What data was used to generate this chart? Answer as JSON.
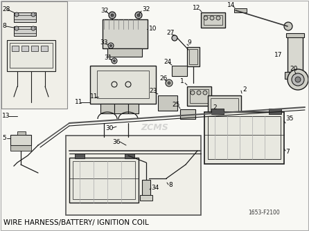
{
  "title": "WIRE HARNESS/BATTERY/ IGNITION COIL",
  "part_code": "1653-F2100",
  "bg_color": "#f5f5f0",
  "line_color": "#1a1a1a",
  "watermark": "ZCMS",
  "watermark_color": "#bbbbbb",
  "figsize": [
    4.46,
    3.34
  ],
  "dpi": 100
}
